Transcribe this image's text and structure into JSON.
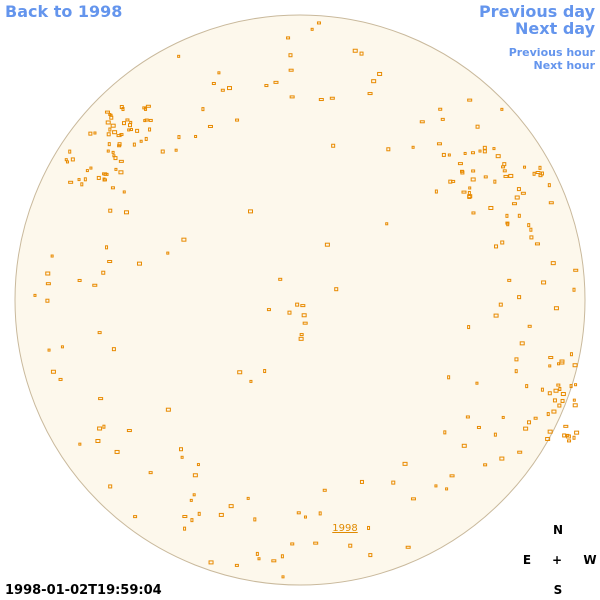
{
  "navigation": {
    "back": "Back to 1998",
    "previous_day": "Previous day",
    "next_day": "Next day",
    "previous_hour": "Previous hour",
    "next_hour": "Next hour"
  },
  "image": {
    "label": "1998",
    "timestamp": "1998-01-02T19:59:04"
  },
  "compass": {
    "north": "N",
    "east": "E",
    "center": "+",
    "west": "W",
    "south": "S"
  }
}
